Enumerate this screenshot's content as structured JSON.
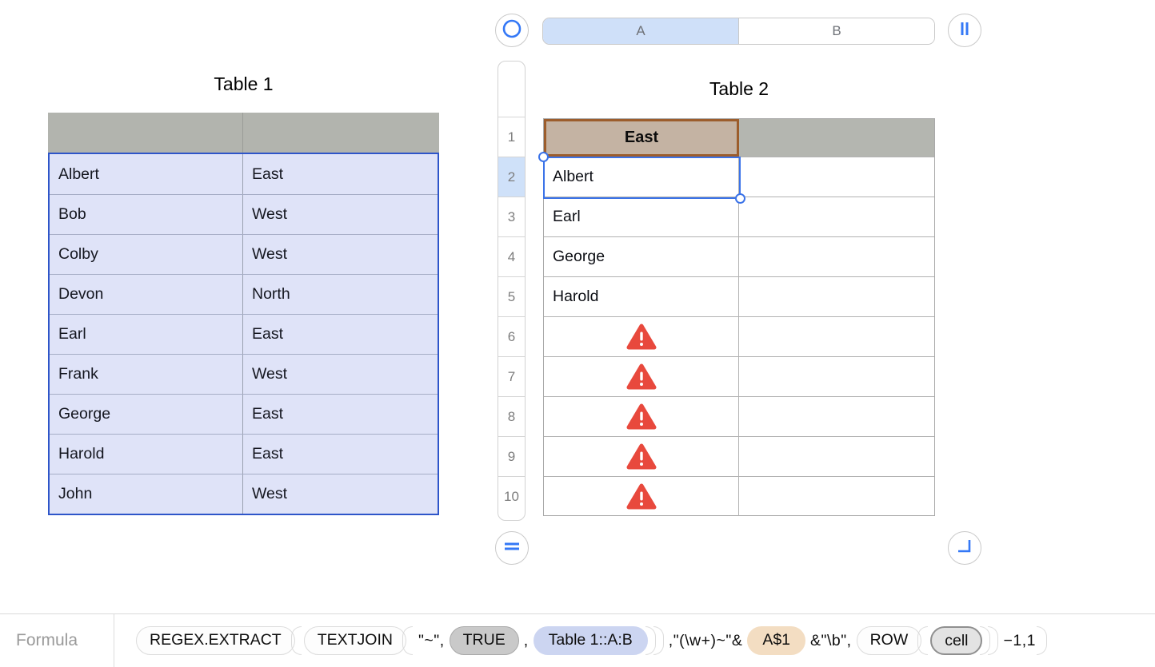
{
  "table1": {
    "title": "Table 1",
    "rows": [
      [
        "Albert",
        "East"
      ],
      [
        "Bob",
        "West"
      ],
      [
        "Colby",
        "West"
      ],
      [
        "Devon",
        "North"
      ],
      [
        "Earl",
        "East"
      ],
      [
        "Frank",
        "West"
      ],
      [
        "George",
        "East"
      ],
      [
        "Harold",
        "East"
      ],
      [
        "John",
        "West"
      ]
    ]
  },
  "table2": {
    "title": "Table 2",
    "column_tabs": [
      "A",
      "B"
    ],
    "header_cell": "East",
    "selected_row": "2",
    "selected_cell": "A2",
    "row_numbers": [
      "1",
      "2",
      "3",
      "4",
      "5",
      "6",
      "7",
      "8",
      "9",
      "10"
    ],
    "column_a": [
      {
        "row": "2",
        "value": "Albert",
        "error": false
      },
      {
        "row": "3",
        "value": "Earl",
        "error": false
      },
      {
        "row": "4",
        "value": "George",
        "error": false
      },
      {
        "row": "5",
        "value": "Harold",
        "error": false
      },
      {
        "row": "6",
        "value": "",
        "error": true
      },
      {
        "row": "7",
        "value": "",
        "error": true
      },
      {
        "row": "8",
        "value": "",
        "error": true
      },
      {
        "row": "9",
        "value": "",
        "error": true
      },
      {
        "row": "10",
        "value": "",
        "error": true
      }
    ],
    "icons": {
      "top_left": "circle-ring-icon",
      "top_right": "parallel-bars-icon",
      "bottom_left": "equals-icon",
      "bottom_right": "corner-resize-icon",
      "error": "warning-triangle-icon"
    }
  },
  "formula_bar": {
    "label": "Formula",
    "tokens": [
      {
        "type": "func",
        "text": "REGEX.EXTRACT"
      },
      {
        "type": "open"
      },
      {
        "type": "func",
        "text": "TEXTJOIN"
      },
      {
        "type": "open"
      },
      {
        "type": "text",
        "text": "\"~\","
      },
      {
        "type": "pill_gray",
        "text": "TRUE"
      },
      {
        "type": "text",
        "text": ","
      },
      {
        "type": "pill_blue",
        "text": "Table 1::A:B"
      },
      {
        "type": "close"
      },
      {
        "type": "close"
      },
      {
        "type": "text",
        "text": ",\"(\\w+)~\"&"
      },
      {
        "type": "pill_tan",
        "text": "A$1"
      },
      {
        "type": "text",
        "text": "&\"\\b\","
      },
      {
        "type": "func",
        "text": "ROW"
      },
      {
        "type": "open"
      },
      {
        "type": "pill_cell",
        "text": "cell"
      },
      {
        "type": "close"
      },
      {
        "type": "close"
      },
      {
        "type": "text",
        "text": "−1,1"
      },
      {
        "type": "close"
      }
    ]
  },
  "colors": {
    "accent_blue": "#3478f6",
    "selection_blue": "#3b73e8",
    "table1_border_blue": "#2e55c9",
    "table1_row_bg": "#dfe3f8",
    "table1_header_bg": "#b2b4ae",
    "table2_header_bg": "#b4b6b0",
    "east_cell_bg": "#c4b3a3",
    "east_cell_border": "#9c5d2c",
    "tab_selected_bg": "#cfe0f9",
    "row_highlight_bg": "#cfe1f9",
    "warning_red": "#e8493d",
    "pill_gray_bg": "#c9c9c9",
    "pill_blue_bg": "#ccd5f1",
    "pill_tan_bg": "#f3ddc2",
    "pill_cell_bg": "#e3e3e3"
  }
}
